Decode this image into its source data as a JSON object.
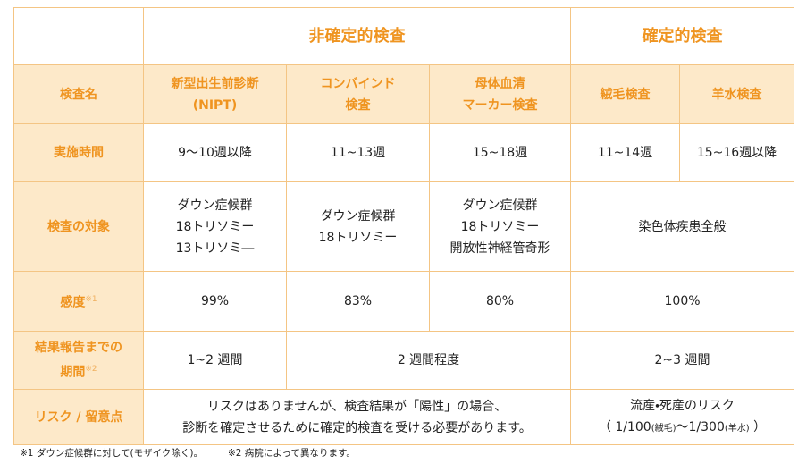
{
  "groups": [
    "非確定的検査",
    "確定的検査"
  ],
  "header": {
    "label": "検査名",
    "tests": [
      [
        "新型出生前診断",
        "(NIPT)"
      ],
      [
        "コンバインド",
        "検査"
      ],
      [
        "母体血清",
        "マーカー検査"
      ],
      [
        "絨毛検査"
      ],
      [
        "羊水検査"
      ]
    ]
  },
  "rows": [
    {
      "label": [
        "実施時間"
      ],
      "cells": [
        [
          "9〜10週以降"
        ],
        [
          "11~13週"
        ],
        [
          "15~18週"
        ],
        [
          "11~14週"
        ],
        [
          "15~16週以降"
        ]
      ]
    },
    {
      "label": [
        "検査の対象"
      ],
      "cells": [
        [
          "ダウン症候群",
          "18トリソミー",
          "13トリソミ―"
        ],
        [
          "ダウン症候群",
          "18トリソミー"
        ],
        [
          "ダウン症候群",
          "18トリソミー",
          "開放性神経管奇形"
        ],
        [
          "染色体疾患全般"
        ]
      ]
    },
    {
      "label": [
        "感度"
      ],
      "note": "※1",
      "cells": [
        [
          "99%"
        ],
        [
          "83%"
        ],
        [
          "80%"
        ],
        [
          "100%"
        ]
      ]
    },
    {
      "label": [
        "結果報告までの",
        "期間"
      ],
      "note": "※2",
      "cells": [
        [
          "1~2 週間"
        ],
        [
          "2 週間程度"
        ],
        [
          "2~3 週間"
        ]
      ]
    },
    {
      "label": [
        "リスク / 留意点"
      ],
      "cells": [
        [
          "リスクはありませんが、検査結果が「陽性」の場合、",
          "診断を確定させるために確定的検査を受ける必要があります。"
        ],
        [
          "流産・死産のリスク"
        ]
      ],
      "risk_ratio": [
        "（ 1/100",
        "(絨毛)",
        "〜1/300",
        "(羊水)",
        " ）"
      ]
    }
  ],
  "footnotes": [
    "※1 ダウン症候群に対して(モザイク除く)。",
    "※2 病院によって異なります。"
  ]
}
